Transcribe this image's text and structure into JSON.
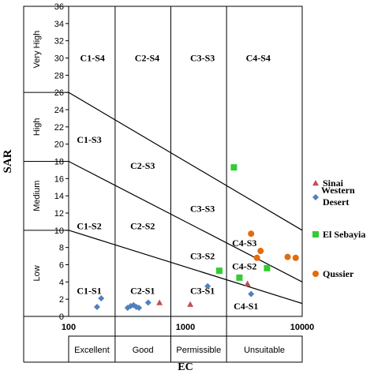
{
  "chart_data": {
    "type": "scatter",
    "x_scale": "log",
    "xlim": [
      100,
      10000
    ],
    "ylim": [
      0,
      36
    ],
    "xlabel": "EC",
    "ylabel": "SAR",
    "x_ticks": [
      "100",
      "1000",
      "10000"
    ],
    "y_ticks": [
      "0",
      "2",
      "4",
      "6",
      "8",
      "10",
      "12",
      "14",
      "16",
      "18",
      "20",
      "22",
      "24",
      "26",
      "28",
      "30",
      "32",
      "34",
      "36"
    ],
    "salinity_classes": [
      "Excellent",
      "Good",
      "Permissible",
      "Unsuitable"
    ],
    "sodium_classes": [
      "Very High",
      "High",
      "Medium",
      "Low"
    ],
    "zone_labels": [
      {
        "text": "C1-S4",
        "ec": 160,
        "sar": 30
      },
      {
        "text": "C2-S4",
        "ec": 470,
        "sar": 30
      },
      {
        "text": "C3-S3",
        "ec": 1400,
        "sar": 30
      },
      {
        "text": "C4-S4",
        "ec": 4200,
        "sar": 30
      },
      {
        "text": "C1-S3",
        "ec": 150,
        "sar": 20.5
      },
      {
        "text": "C2-S3",
        "ec": 430,
        "sar": 17.5
      },
      {
        "text": "C3-S3",
        "ec": 1400,
        "sar": 12.5
      },
      {
        "text": "C4-S3",
        "ec": 3200,
        "sar": 8.5
      },
      {
        "text": "C1-S2",
        "ec": 150,
        "sar": 10.5
      },
      {
        "text": "C2-S2",
        "ec": 430,
        "sar": 10.5
      },
      {
        "text": "C3-S2",
        "ec": 1400,
        "sar": 7
      },
      {
        "text": "C4-S2",
        "ec": 3200,
        "sar": 5.8
      },
      {
        "text": "C1-S1",
        "ec": 150,
        "sar": 3
      },
      {
        "text": "C2-S1",
        "ec": 430,
        "sar": 3
      },
      {
        "text": "C3-S1",
        "ec": 1400,
        "sar": 3
      },
      {
        "text": "C4-S1",
        "ec": 3300,
        "sar": 1.2
      }
    ],
    "series": [
      {
        "name": "Sinai",
        "marker": "triangle",
        "color": "#c0504d",
        "points": [
          [
            600,
            1.6
          ],
          [
            1100,
            1.4
          ],
          [
            3400,
            3.8
          ]
        ]
      },
      {
        "name": "Western Desert",
        "marker": "diamond",
        "color": "#4f81bd",
        "points": [
          [
            175,
            1.1
          ],
          [
            190,
            2.1
          ],
          [
            320,
            1.0
          ],
          [
            340,
            1.2
          ],
          [
            360,
            1.3
          ],
          [
            380,
            1.1
          ],
          [
            400,
            1.0
          ],
          [
            480,
            1.6
          ],
          [
            1550,
            3.5
          ],
          [
            3650,
            2.6
          ]
        ]
      },
      {
        "name": "El Sebayia",
        "marker": "square",
        "color": "#33cc33",
        "points": [
          [
            1950,
            5.3
          ],
          [
            2600,
            17.3
          ],
          [
            2900,
            4.5
          ],
          [
            5000,
            5.6
          ]
        ]
      },
      {
        "name": "Qussier",
        "marker": "circle",
        "color": "#e26b0a",
        "points": [
          [
            3650,
            9.6
          ],
          [
            4100,
            6.8
          ],
          [
            4400,
            7.6
          ],
          [
            7500,
            6.9
          ],
          [
            8800,
            6.8
          ]
        ]
      }
    ]
  }
}
